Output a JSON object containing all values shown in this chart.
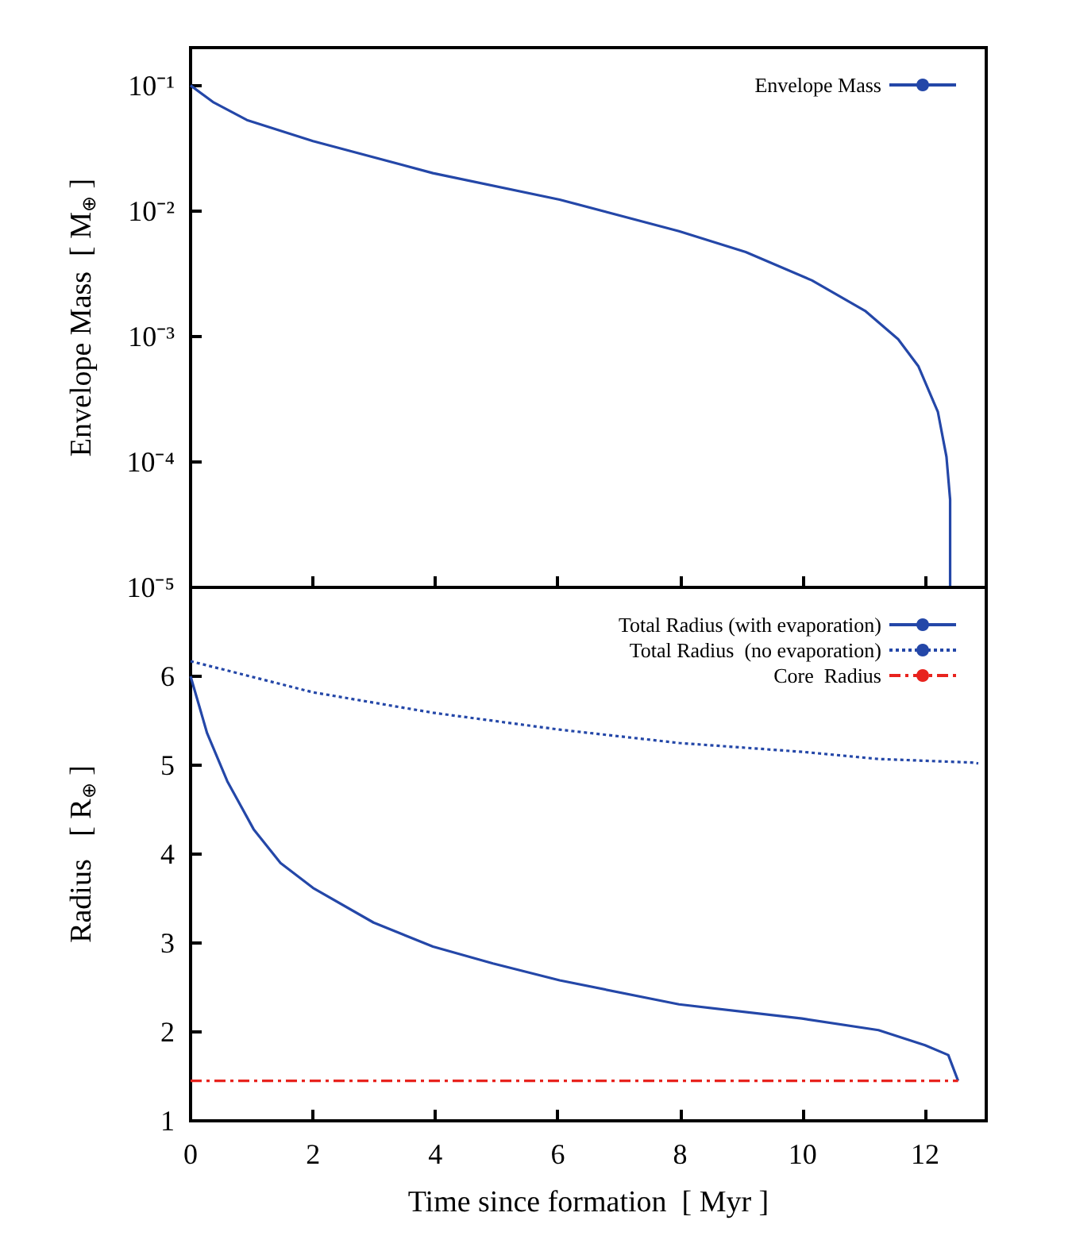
{
  "chart_data": [
    {
      "type": "line",
      "ylabel": "Envelope Mass  [ M$_{⊕}$ ]",
      "xlim": [
        0,
        13
      ],
      "xticks": [
        0,
        2,
        4,
        6,
        8,
        10,
        12
      ],
      "ylim": [
        1e-05,
        0.2
      ],
      "log": "y",
      "yticks": [
        {
          "value": 0.1,
          "label": "10⁻¹"
        },
        {
          "value": 0.01,
          "label": "10⁻²"
        },
        {
          "value": 0.001,
          "label": "10⁻³"
        },
        {
          "value": 0.0001,
          "label": "10⁻⁴"
        },
        {
          "value": 1e-05,
          "label": "10⁻⁵"
        }
      ],
      "tick_labels": "y",
      "legend": "top right",
      "grid": false,
      "marker": "none",
      "series": [
        {
          "name": "Envelope Mass",
          "color": "#2447a8",
          "line_style": "solid",
          "x": [
            0,
            0.38,
            0.92,
            2.0,
            3.96,
            6.03,
            7.98,
            9.07,
            10.15,
            11.02,
            11.56,
            11.89,
            12.21,
            12.35,
            12.41,
            12.41
          ],
          "values": [
            0.1,
            0.073,
            0.053,
            0.036,
            0.02,
            0.0123,
            0.0069,
            0.0047,
            0.0028,
            0.0016,
            0.00095,
            0.00058,
            0.00025,
            0.00011,
            5e-05,
            1e-05
          ]
        }
      ]
    },
    {
      "type": "line",
      "xlabel": "Time since formation  [ Myr ]",
      "ylabel": "Radius   [ R$_{⊕}$ ]",
      "xlim": [
        0,
        13
      ],
      "xticks": [
        0,
        2,
        4,
        6,
        8,
        10,
        12
      ],
      "ylim": [
        1,
        7
      ],
      "yticks": [
        1,
        2,
        3,
        4,
        5,
        6
      ],
      "legend": "top right",
      "grid": false,
      "marker": "none",
      "series": [
        {
          "name": "Total Radius (with evaporation)",
          "color": "#2447a8",
          "line_style": "solid",
          "x": [
            0,
            0.27,
            0.6,
            1.03,
            1.47,
            2.0,
            2.99,
            3.96,
            4.94,
            6.03,
            7.98,
            9.99,
            11.24,
            12.0,
            12.38,
            12.54
          ],
          "values": [
            6.0,
            5.36,
            4.82,
            4.28,
            3.9,
            3.62,
            3.23,
            2.96,
            2.77,
            2.58,
            2.31,
            2.15,
            2.02,
            1.85,
            1.74,
            1.45
          ]
        },
        {
          "name": "Total Radius  (no evaporation)",
          "color": "#2447a8",
          "line_style": "dotted",
          "x": [
            0,
            2.0,
            3.96,
            6.03,
            7.98,
            10.0,
            11.24,
            12.76,
            12.87
          ],
          "values": [
            6.17,
            5.82,
            5.59,
            5.4,
            5.25,
            5.15,
            5.07,
            5.03,
            5.02
          ]
        },
        {
          "name": "Core  Radius",
          "color": "#e8231e",
          "line_style": "dashed",
          "x": [
            0,
            12.54
          ],
          "values": [
            1.45,
            1.45
          ]
        }
      ]
    }
  ]
}
